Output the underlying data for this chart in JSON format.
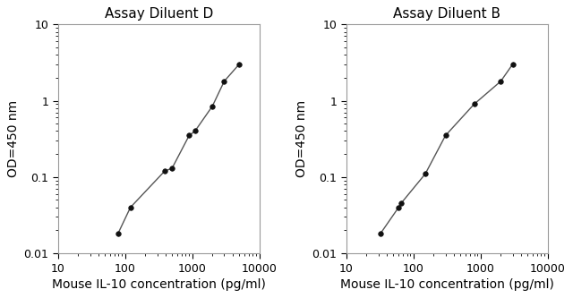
{
  "left_title": "Assay Diluent D",
  "right_title": "Assay Diluent B",
  "xlabel": "Mouse IL-10 concentration (pg/ml)",
  "ylabel": "OD=450 nm",
  "left_xy": [
    [
      78,
      0.018
    ],
    [
      120,
      0.04
    ],
    [
      390,
      0.12
    ],
    [
      500,
      0.13
    ],
    [
      900,
      0.35
    ],
    [
      1100,
      0.4
    ],
    [
      2000,
      0.85
    ],
    [
      3000,
      1.8
    ],
    [
      5000,
      3.0
    ]
  ],
  "right_xy": [
    [
      32,
      0.018
    ],
    [
      60,
      0.04
    ],
    [
      65,
      0.045
    ],
    [
      150,
      0.11
    ],
    [
      300,
      0.35
    ],
    [
      800,
      0.9
    ],
    [
      2000,
      1.8
    ],
    [
      3000,
      3.0
    ]
  ],
  "xlim_left": [
    10,
    10000
  ],
  "xlim_right": [
    10,
    10000
  ],
  "ylim": [
    0.01,
    10
  ],
  "yticks": [
    0.01,
    0.1,
    1,
    10
  ],
  "ytick_labels": [
    "0.01",
    "0.1",
    "1",
    "10"
  ],
  "xticks": [
    10,
    100,
    1000,
    10000
  ],
  "xtick_labels": [
    "10",
    "100",
    "1000",
    "10000"
  ],
  "bg_color": "#ffffff",
  "line_color": "#555555",
  "marker_color": "#111111",
  "title_fontsize": 11,
  "label_fontsize": 10,
  "tick_fontsize": 9
}
